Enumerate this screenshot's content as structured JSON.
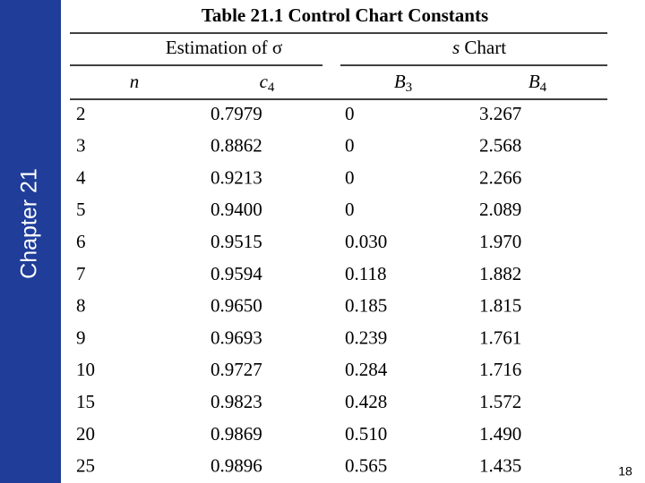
{
  "sidebar": {
    "label": "Chapter 21"
  },
  "table": {
    "title": "Table 21.1 Control Chart Constants",
    "groups": [
      {
        "label": "Estimation of σ"
      },
      {
        "italic": "s",
        "label": "Chart"
      }
    ],
    "columns": [
      {
        "symbol": "n"
      },
      {
        "symbol": "c",
        "subscript": "4"
      },
      {
        "symbol": "B",
        "subscript": "3"
      },
      {
        "symbol": "B",
        "subscript": "4"
      }
    ],
    "rows": [
      [
        "2",
        "0.7979",
        "0",
        "3.267"
      ],
      [
        "3",
        "0.8862",
        "0",
        "2.568"
      ],
      [
        "4",
        "0.9213",
        "0",
        "2.266"
      ],
      [
        "5",
        "0.9400",
        "0",
        "2.089"
      ],
      [
        "6",
        "0.9515",
        "0.030",
        "1.970"
      ],
      [
        "7",
        "0.9594",
        "0.118",
        "1.882"
      ],
      [
        "8",
        "0.9650",
        "0.185",
        "1.815"
      ],
      [
        "9",
        "0.9693",
        "0.239",
        "1.761"
      ],
      [
        "10",
        "0.9727",
        "0.284",
        "1.716"
      ],
      [
        "15",
        "0.9823",
        "0.428",
        "1.572"
      ],
      [
        "20",
        "0.9869",
        "0.510",
        "1.490"
      ],
      [
        "25",
        "0.9896",
        "0.565",
        "1.435"
      ]
    ]
  },
  "page_number": "18"
}
